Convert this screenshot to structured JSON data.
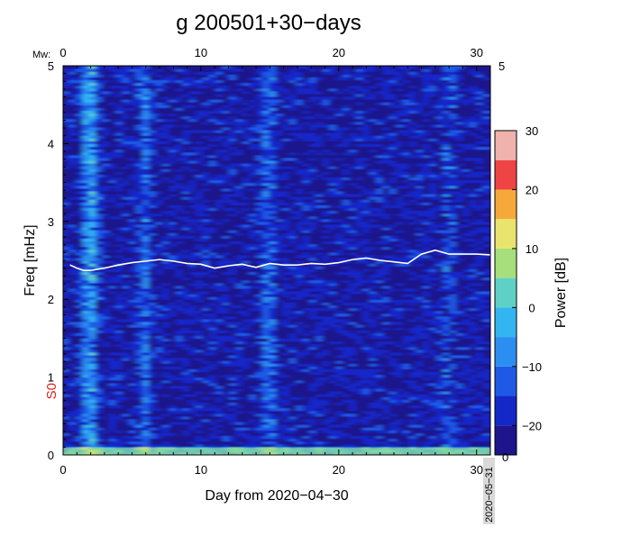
{
  "chart_data": {
    "type": "heatmap",
    "title": "g 200501+30−days",
    "xlabel": "Day from 2020−04−30",
    "ylabel": "Freq [mHz]",
    "colorbar_label": "Power [dB]",
    "xlim": [
      0,
      31
    ],
    "ylim": [
      0,
      5
    ],
    "x_ticks": [
      "0",
      "10",
      "20",
      "30"
    ],
    "x_tick_values": [
      0,
      10,
      20,
      30
    ],
    "y_ticks": [
      "0",
      "1",
      "2",
      "3",
      "4",
      "5"
    ],
    "y_tick_values": [
      0,
      1,
      2,
      3,
      4,
      5
    ],
    "top_axis_label": "Mw:",
    "top_ticks": [
      "0",
      "10",
      "20",
      "30"
    ],
    "right_axis_top_label": "5",
    "end_date_label": "2020−05−31",
    "mode_label": "S0",
    "mode_freq_mhz": 0.82,
    "colorbar_ticks": [
      "30",
      "20",
      "10",
      "0",
      "−10",
      "−20"
    ],
    "colorbar_tick_values": [
      30,
      20,
      10,
      0,
      -10,
      -20
    ],
    "colorbar_range": [
      -25,
      30
    ],
    "colorbar_bottom_label": "0",
    "colorbar_levels": [
      {
        "value": -25,
        "color": "#1e148c"
      },
      {
        "value": -20,
        "color": "#1428c8"
      },
      {
        "value": -15,
        "color": "#1f5ae6"
      },
      {
        "value": -10,
        "color": "#2c8ef0"
      },
      {
        "value": -5,
        "color": "#33b5f2"
      },
      {
        "value": 0,
        "color": "#5fd0c6"
      },
      {
        "value": 5,
        "color": "#a6df7c"
      },
      {
        "value": 10,
        "color": "#e9e46e"
      },
      {
        "value": 15,
        "color": "#f7a83a"
      },
      {
        "value": 20,
        "color": "#ee4444"
      },
      {
        "value": 25,
        "color": "#f0b2ad"
      },
      {
        "value": 30,
        "color": "#fff4f4"
      }
    ],
    "bright_days": [
      2,
      6,
      15,
      28
    ],
    "white_line": {
      "name": "reference frequency trace",
      "days": [
        0.5,
        1,
        1.5,
        2,
        3,
        4,
        5,
        6,
        7,
        8,
        9,
        10,
        11,
        12,
        13,
        14,
        15,
        16,
        17,
        18,
        19,
        20,
        21,
        22,
        23,
        24,
        25,
        26,
        27,
        28,
        29,
        30,
        31
      ],
      "freqs": [
        2.44,
        2.4,
        2.37,
        2.37,
        2.4,
        2.44,
        2.47,
        2.49,
        2.51,
        2.49,
        2.46,
        2.45,
        2.4,
        2.43,
        2.45,
        2.41,
        2.46,
        2.44,
        2.44,
        2.46,
        2.45,
        2.47,
        2.51,
        2.53,
        2.5,
        2.48,
        2.46,
        2.58,
        2.63,
        2.58,
        2.58,
        2.58,
        2.57
      ]
    }
  }
}
